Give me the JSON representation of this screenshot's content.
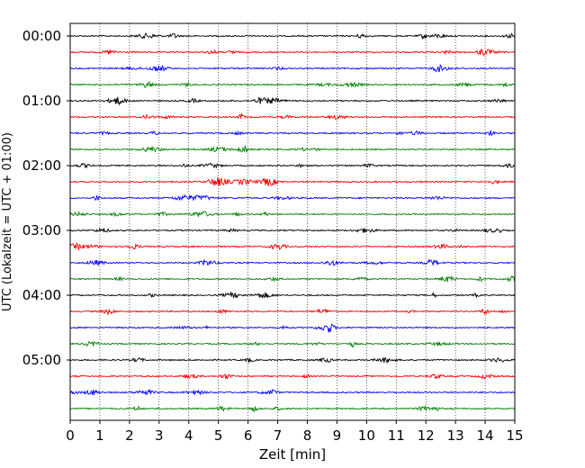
{
  "chart_data": {
    "type": "line",
    "title": "",
    "xlabel": "Zeit  [min]",
    "ylabel": "UTC (Lokalzeit = UTC + 01:00)",
    "xlim": [
      0,
      15
    ],
    "x_ticks": [
      "0",
      "1",
      "2",
      "3",
      "4",
      "5",
      "6",
      "7",
      "8",
      "9",
      "10",
      "11",
      "12",
      "13",
      "14",
      "15"
    ],
    "y_tick_labels": [
      "00:00",
      "01:00",
      "02:00",
      "03:00",
      "04:00",
      "05:00"
    ],
    "grid": "vertical dotted",
    "legend": "none",
    "trace_interval_minutes": 15,
    "trace_start_utc": [
      "00:00",
      "00:15",
      "00:30",
      "00:45",
      "01:00",
      "01:15",
      "01:30",
      "01:45",
      "02:00",
      "02:15",
      "02:30",
      "02:45",
      "03:00",
      "03:15",
      "03:30",
      "03:45",
      "04:00",
      "04:15",
      "04:30",
      "04:45",
      "05:00",
      "05:15",
      "05:30",
      "05:45"
    ],
    "trace_colors": [
      "#000000",
      "#ff0000",
      "#0000ff",
      "#008000"
    ]
  }
}
